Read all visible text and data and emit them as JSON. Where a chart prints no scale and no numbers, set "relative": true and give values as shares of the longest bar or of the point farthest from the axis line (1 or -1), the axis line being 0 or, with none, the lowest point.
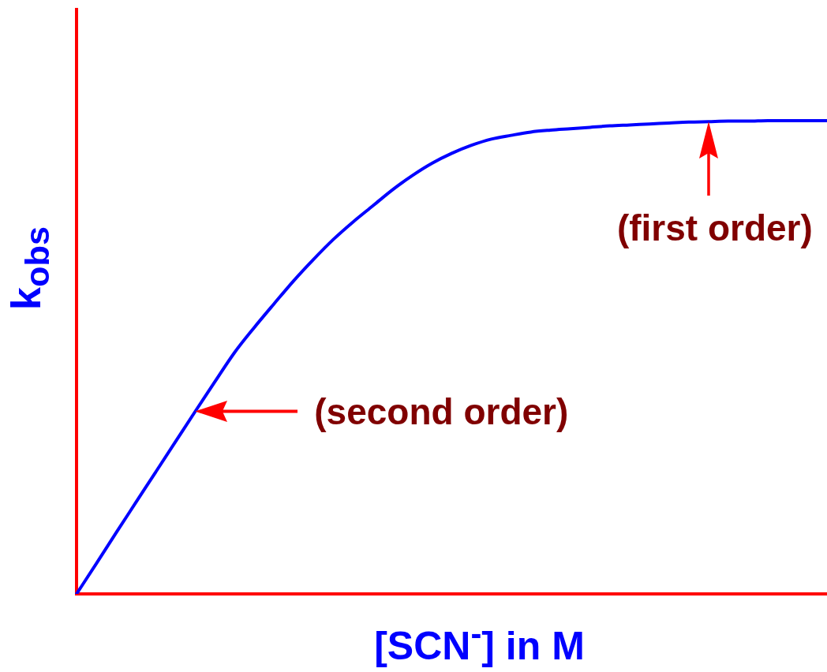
{
  "chart_data": {
    "type": "line",
    "relative": true,
    "xlabel": "[SCN$^{-}$] in M",
    "ylabel": "k$_{obs}$",
    "tick_labels": false,
    "marker": "none",
    "categories": [
      null,
      null,
      null,
      null,
      null,
      null,
      null,
      null,
      null,
      null,
      null,
      null,
      null,
      null,
      null,
      null,
      null,
      null,
      null,
      null,
      null,
      null,
      null,
      null,
      null,
      null,
      null,
      null,
      null,
      null,
      null,
      null,
      null,
      null,
      null,
      null,
      null,
      null,
      null
    ],
    "series": [
      {
        "color": "#0000ff",
        "values": [
          0,
          0.064,
          0.129,
          0.193,
          0.257,
          0.321,
          0.385,
          0.448,
          0.51,
          0.563,
          0.613,
          0.662,
          0.707,
          0.749,
          0.786,
          0.82,
          0.854,
          0.884,
          0.91,
          0.931,
          0.948,
          0.961,
          0.969,
          0.976,
          0.98,
          0.983,
          0.986,
          0.989,
          0.991,
          0.993,
          0.995,
          0.997,
          0.998,
          0.999,
          0.999,
          1,
          1,
          1,
          1
        ]
      }
    ],
    "annotations": [
      "(second order)",
      {
        "text": "(first order)",
        "y": 0.998
      }
    ]
  }
}
